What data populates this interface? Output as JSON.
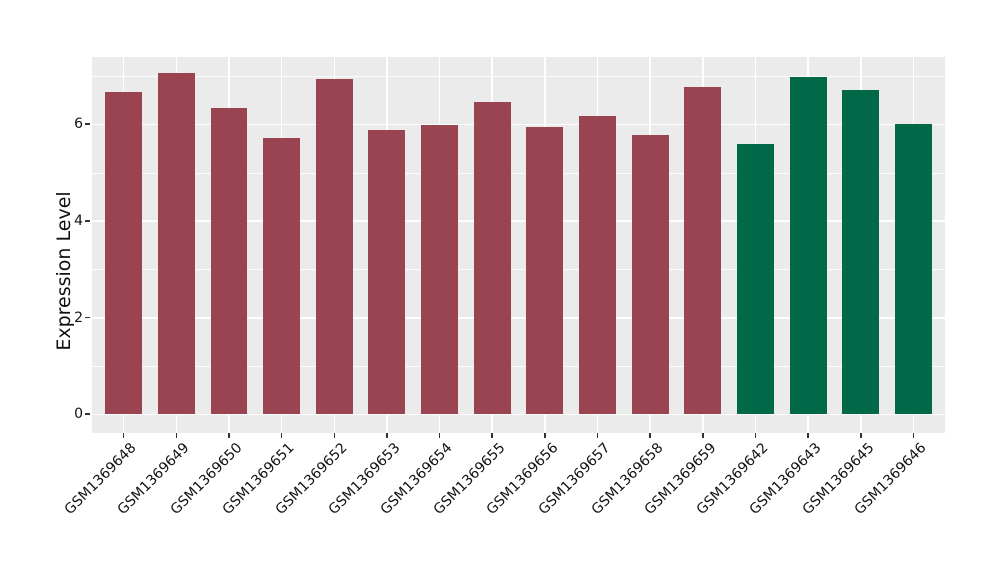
{
  "chart_data": {
    "type": "bar",
    "title": "",
    "xlabel": "",
    "ylabel": "Expression Level",
    "categories": [
      "GSM1369648",
      "GSM1369649",
      "GSM1369650",
      "GSM1369651",
      "GSM1369652",
      "GSM1369653",
      "GSM1369654",
      "GSM1369655",
      "GSM1369656",
      "GSM1369657",
      "GSM1369658",
      "GSM1369659",
      "GSM1369642",
      "GSM1369643",
      "GSM1369645",
      "GSM1369646"
    ],
    "values": [
      6.67,
      7.05,
      6.33,
      5.71,
      6.93,
      5.88,
      5.98,
      6.46,
      5.95,
      6.17,
      5.77,
      6.77,
      5.6,
      6.97,
      6.7,
      6.0
    ],
    "bar_colors": [
      "#9a4351",
      "#9a4351",
      "#9a4351",
      "#9a4351",
      "#9a4351",
      "#9a4351",
      "#9a4351",
      "#9a4351",
      "#9a4351",
      "#9a4351",
      "#9a4351",
      "#9a4351",
      "#016848",
      "#016848",
      "#016848",
      "#016848"
    ],
    "group_colors": {
      "maroon": "#9a4351",
      "green": "#016848"
    },
    "yticks": [
      0,
      2,
      4,
      6
    ],
    "yticks_minor": [
      1,
      3,
      5,
      7
    ],
    "ylim": [
      -0.39,
      7.39
    ],
    "x_tick_rotation": -45,
    "legend": "none",
    "grid": "on",
    "panel_bg": "#ebebeb",
    "grid_color": "#ffffff",
    "tick_color": "#333333",
    "text_color": "#111111",
    "bar_width_fraction": 0.7
  }
}
